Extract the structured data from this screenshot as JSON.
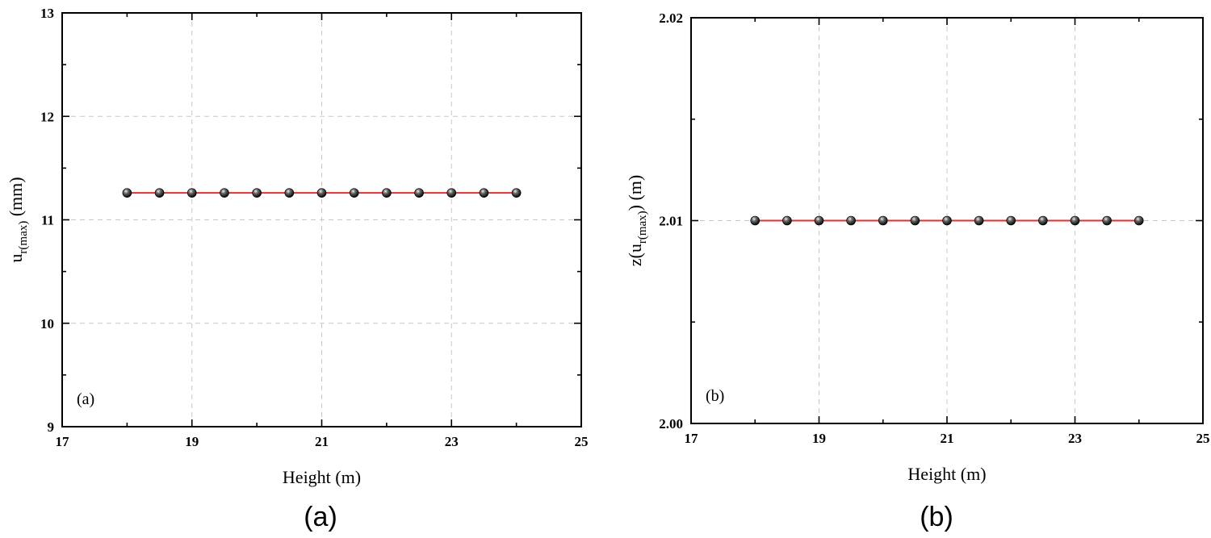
{
  "chart_data": [
    {
      "type": "line",
      "panel_label": "(a)",
      "caption": "(a)",
      "xlabel": "Height (m)",
      "ylabel": {
        "base": "u",
        "sub": "r(max)",
        "unit": " (mm)"
      },
      "xlim": [
        17,
        25
      ],
      "ylim": [
        9,
        13
      ],
      "xticks": [
        "17",
        "19",
        "21",
        "23",
        "25"
      ],
      "yticks": [
        "9",
        "10",
        "11",
        "12",
        "13"
      ],
      "grid": true,
      "series": [
        {
          "color": "#e03030",
          "marker": "black-sphere",
          "x": [
            18,
            18.5,
            19,
            19.5,
            20,
            20.5,
            21,
            21.5,
            22,
            22.5,
            23,
            23.5,
            24
          ],
          "y": [
            11.26,
            11.26,
            11.26,
            11.26,
            11.26,
            11.26,
            11.26,
            11.26,
            11.26,
            11.26,
            11.26,
            11.26,
            11.26
          ]
        }
      ]
    },
    {
      "type": "line",
      "panel_label": "(b)",
      "caption": "(b)",
      "xlabel": "Height (m)",
      "ylabel": {
        "base": "z(u",
        "sub": "r(max)",
        "unit": ") (m)"
      },
      "xlim": [
        17,
        25
      ],
      "ylim": [
        2.0,
        2.02
      ],
      "xticks": [
        "17",
        "19",
        "21",
        "23",
        "25"
      ],
      "yticks": [
        "2.00",
        "2.01",
        "2.02"
      ],
      "grid": true,
      "series": [
        {
          "color": "#e03030",
          "marker": "black-sphere",
          "x": [
            18,
            18.5,
            19,
            19.5,
            20,
            20.5,
            21,
            21.5,
            22,
            22.5,
            23,
            23.5,
            24
          ],
          "y": [
            2.01,
            2.01,
            2.01,
            2.01,
            2.01,
            2.01,
            2.01,
            2.01,
            2.01,
            2.01,
            2.01,
            2.01,
            2.01
          ]
        }
      ]
    }
  ]
}
